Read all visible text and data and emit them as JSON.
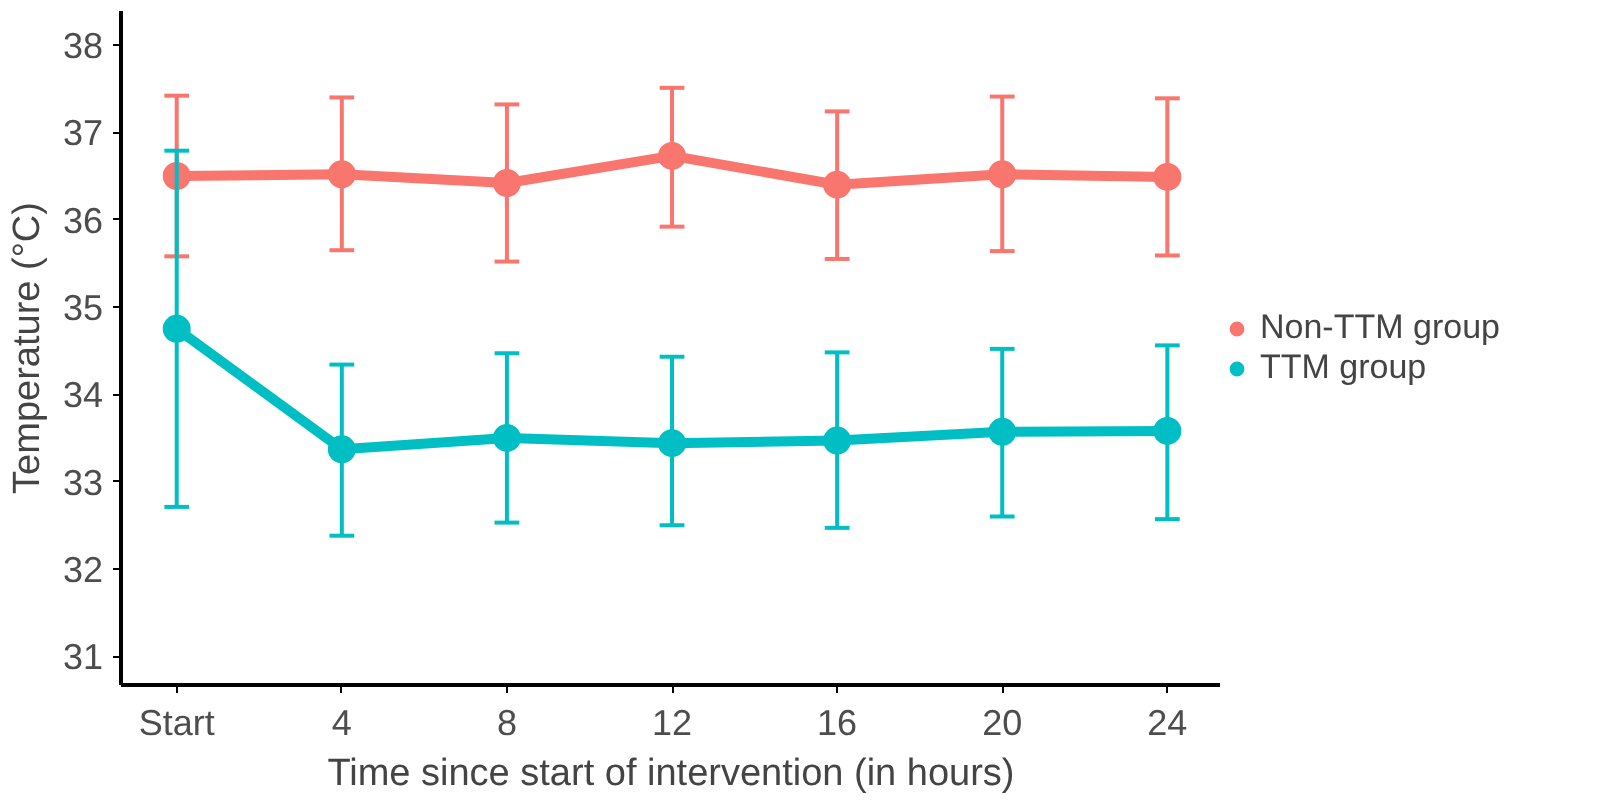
{
  "chart_data": {
    "type": "line",
    "xlabel": "Time since start of intervention (in hours)",
    "ylabel": "Temperature (°C)",
    "x": [
      0,
      4,
      8,
      12,
      16,
      20,
      24
    ],
    "xlim": [
      -1.35,
      25.3
    ],
    "xticks": [
      {
        "value": 0,
        "label": "Start"
      },
      4,
      8,
      12,
      16,
      20,
      24
    ],
    "ylim": [
      30.67,
      38.39
    ],
    "yticks": [
      31,
      32,
      33,
      34,
      35,
      36,
      37,
      38
    ],
    "series": [
      {
        "name": "Non-TTM group",
        "color": "#f8766d",
        "values": [
          36.5,
          36.52,
          36.42,
          36.73,
          36.4,
          36.52,
          36.49
        ],
        "errors": [
          [
            35.58,
            37.42
          ],
          [
            35.65,
            37.4
          ],
          [
            35.52,
            37.32
          ],
          [
            35.92,
            37.51
          ],
          [
            35.55,
            37.24
          ],
          [
            35.64,
            37.41
          ],
          [
            35.59,
            37.39
          ]
        ]
      },
      {
        "name": "TTM group",
        "color": "#00bfc4",
        "values": [
          34.75,
          33.37,
          33.5,
          33.44,
          33.47,
          33.57,
          33.58
        ],
        "errors": [
          [
            32.71,
            36.79
          ],
          [
            32.38,
            34.34
          ],
          [
            32.53,
            34.47
          ],
          [
            32.5,
            34.43
          ],
          [
            32.47,
            34.48
          ],
          [
            32.6,
            34.52
          ],
          [
            32.57,
            34.56
          ]
        ]
      }
    ],
    "grid": false,
    "legend": "right",
    "marker": "circle",
    "line_style": "solid"
  }
}
